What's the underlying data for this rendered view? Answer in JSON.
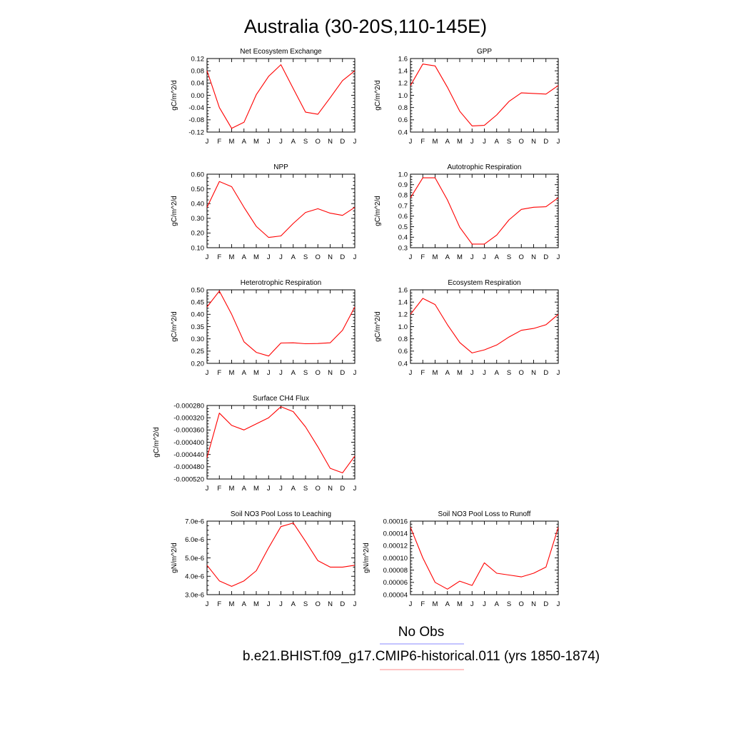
{
  "page": {
    "title": "Australia (30-20S,110-145E)"
  },
  "legend": {
    "entries": [
      {
        "label": "No Obs",
        "color": "#8888ff"
      },
      {
        "label": "b.e21.BHIST.f09_g17.CMIP6-historical.011 (yrs 1850-1874)",
        "color": "#ff8888"
      }
    ]
  },
  "colors": {
    "series": "#ff0000"
  },
  "chart_data": [
    {
      "type": "line",
      "title": "Net Ecosystem Exchange",
      "ylabel": "gC/m^2/d",
      "x": [
        "J",
        "F",
        "M",
        "A",
        "M",
        "J",
        "J",
        "A",
        "S",
        "O",
        "N",
        "D",
        "J"
      ],
      "ylim": [
        -0.12,
        0.12
      ],
      "yticks": [
        -0.12,
        -0.08,
        -0.04,
        0.0,
        0.04,
        0.08,
        0.12
      ],
      "ytick_labels": [
        "-0.12",
        "-0.08",
        "-0.04",
        "0.00",
        "0.04",
        "0.08",
        "0.12"
      ],
      "series": [
        {
          "values": [
            0.08,
            -0.04,
            -0.108,
            -0.088,
            0.002,
            0.062,
            0.1,
            0.022,
            -0.055,
            -0.062,
            -0.008,
            0.048,
            0.08
          ]
        }
      ]
    },
    {
      "type": "line",
      "title": "GPP",
      "ylabel": "gC/m^2/d",
      "x": [
        "J",
        "F",
        "M",
        "A",
        "M",
        "J",
        "J",
        "A",
        "S",
        "O",
        "N",
        "D",
        "J"
      ],
      "ylim": [
        0.4,
        1.6
      ],
      "yticks": [
        0.4,
        0.6,
        0.8,
        1.0,
        1.2,
        1.4,
        1.6
      ],
      "ytick_labels": [
        "0.4",
        "0.6",
        "0.8",
        "1.0",
        "1.2",
        "1.4",
        "1.6"
      ],
      "series": [
        {
          "values": [
            1.16,
            1.51,
            1.48,
            1.13,
            0.74,
            0.5,
            0.51,
            0.68,
            0.9,
            1.04,
            1.03,
            1.02,
            1.16
          ]
        }
      ]
    },
    {
      "type": "line",
      "title": "NPP",
      "ylabel": "gC/m^2/d",
      "x": [
        "J",
        "F",
        "M",
        "A",
        "M",
        "J",
        "J",
        "A",
        "S",
        "O",
        "N",
        "D",
        "J"
      ],
      "ylim": [
        0.1,
        0.6
      ],
      "yticks": [
        0.1,
        0.2,
        0.3,
        0.4,
        0.5,
        0.6
      ],
      "ytick_labels": [
        "0.10",
        "0.20",
        "0.30",
        "0.40",
        "0.50",
        "0.60"
      ],
      "series": [
        {
          "values": [
            0.375,
            0.55,
            0.515,
            0.375,
            0.245,
            0.17,
            0.18,
            0.265,
            0.34,
            0.365,
            0.335,
            0.32,
            0.375
          ]
        }
      ]
    },
    {
      "type": "line",
      "title": "Autotrophic Respiration",
      "ylabel": "gC/m^2/d",
      "x": [
        "J",
        "F",
        "M",
        "A",
        "M",
        "J",
        "J",
        "A",
        "S",
        "O",
        "N",
        "D",
        "J"
      ],
      "ylim": [
        0.3,
        1.0
      ],
      "yticks": [
        0.3,
        0.4,
        0.5,
        0.6,
        0.7,
        0.8,
        0.9,
        1.0
      ],
      "ytick_labels": [
        "0.3",
        "0.4",
        "0.5",
        "0.6",
        "0.7",
        "0.8",
        "0.9",
        "1.0"
      ],
      "series": [
        {
          "values": [
            0.775,
            0.965,
            0.965,
            0.755,
            0.495,
            0.335,
            0.335,
            0.42,
            0.565,
            0.665,
            0.685,
            0.69,
            0.775
          ]
        }
      ]
    },
    {
      "type": "line",
      "title": "Heterotrophic Respiration",
      "ylabel": "gC/m^2/d",
      "x": [
        "J",
        "F",
        "M",
        "A",
        "M",
        "J",
        "J",
        "A",
        "S",
        "O",
        "N",
        "D",
        "J"
      ],
      "ylim": [
        0.2,
        0.5
      ],
      "yticks": [
        0.2,
        0.25,
        0.3,
        0.35,
        0.4,
        0.45,
        0.5
      ],
      "ytick_labels": [
        "0.20",
        "0.25",
        "0.30",
        "0.35",
        "0.40",
        "0.45",
        "0.50"
      ],
      "series": [
        {
          "values": [
            0.43,
            0.495,
            0.4,
            0.288,
            0.245,
            0.23,
            0.283,
            0.284,
            0.28,
            0.281,
            0.284,
            0.335,
            0.43
          ]
        }
      ]
    },
    {
      "type": "line",
      "title": "Ecosystem Respiration",
      "ylabel": "gC/m^2/d",
      "x": [
        "J",
        "F",
        "M",
        "A",
        "M",
        "J",
        "J",
        "A",
        "S",
        "O",
        "N",
        "D",
        "J"
      ],
      "ylim": [
        0.4,
        1.6
      ],
      "yticks": [
        0.4,
        0.6,
        0.8,
        1.0,
        1.2,
        1.4,
        1.6
      ],
      "ytick_labels": [
        "0.4",
        "0.6",
        "0.8",
        "1.0",
        "1.2",
        "1.4",
        "1.6"
      ],
      "series": [
        {
          "values": [
            1.2,
            1.46,
            1.36,
            1.03,
            0.74,
            0.57,
            0.62,
            0.7,
            0.83,
            0.94,
            0.97,
            1.03,
            1.2
          ]
        }
      ]
    },
    {
      "type": "line",
      "title": "Surface CH4 Flux",
      "ylabel": "gC/m^2/d",
      "x": [
        "J",
        "F",
        "M",
        "A",
        "M",
        "J",
        "J",
        "A",
        "S",
        "O",
        "N",
        "D",
        "J"
      ],
      "ylim": [
        -0.00052,
        -0.00028
      ],
      "yticks": [
        -0.00052,
        -0.00048,
        -0.00044,
        -0.0004,
        -0.00036,
        -0.00032,
        -0.00028
      ],
      "ytick_labels": [
        "-0.000520",
        "-0.000480",
        "-0.000440",
        "-0.000400",
        "-0.000360",
        "-0.000320",
        "-0.000280"
      ],
      "series": [
        {
          "values": [
            -0.00045,
            -0.000305,
            -0.000345,
            -0.00036,
            -0.00034,
            -0.00032,
            -0.000284,
            -0.0003,
            -0.00035,
            -0.000415,
            -0.000485,
            -0.0005,
            -0.000445
          ]
        }
      ]
    },
    {
      "type": "line",
      "title": "Soil NO3 Pool Loss to Leaching",
      "ylabel": "gN/m^2/d",
      "x": [
        "J",
        "F",
        "M",
        "A",
        "M",
        "J",
        "J",
        "A",
        "S",
        "O",
        "N",
        "D",
        "J"
      ],
      "ylim": [
        3e-06,
        7e-06
      ],
      "yticks": [
        3e-06,
        4e-06,
        5e-06,
        6e-06,
        7e-06
      ],
      "ytick_labels": [
        "3.0e-6",
        "4.0e-6",
        "5.0e-6",
        "6.0e-6",
        "7.0e-6"
      ],
      "series": [
        {
          "values": [
            4.6e-06,
            3.75e-06,
            3.45e-06,
            3.75e-06,
            4.3e-06,
            5.55e-06,
            6.7e-06,
            6.9e-06,
            5.9e-06,
            4.85e-06,
            4.5e-06,
            4.5e-06,
            4.6e-06
          ]
        }
      ]
    },
    {
      "type": "line",
      "title": "Soil NO3 Pool Loss to Runoff",
      "ylabel": "gN/m^2/d",
      "x": [
        "J",
        "F",
        "M",
        "A",
        "M",
        "J",
        "J",
        "A",
        "S",
        "O",
        "N",
        "D",
        "J"
      ],
      "ylim": [
        4e-05,
        0.00016
      ],
      "yticks": [
        4e-05,
        6e-05,
        8e-05,
        0.0001,
        0.00012,
        0.00014,
        0.00016
      ],
      "ytick_labels": [
        "0.00004",
        "0.00006",
        "0.00008",
        "0.00010",
        "0.00012",
        "0.00014",
        "0.00016"
      ],
      "series": [
        {
          "values": [
            0.00015,
            0.0001,
            6e-05,
            4.9e-05,
            6.2e-05,
            5.5e-05,
            9.2e-05,
            7.5e-05,
            7.2e-05,
            6.9e-05,
            7.5e-05,
            8.5e-05,
            0.00015
          ]
        }
      ]
    }
  ]
}
